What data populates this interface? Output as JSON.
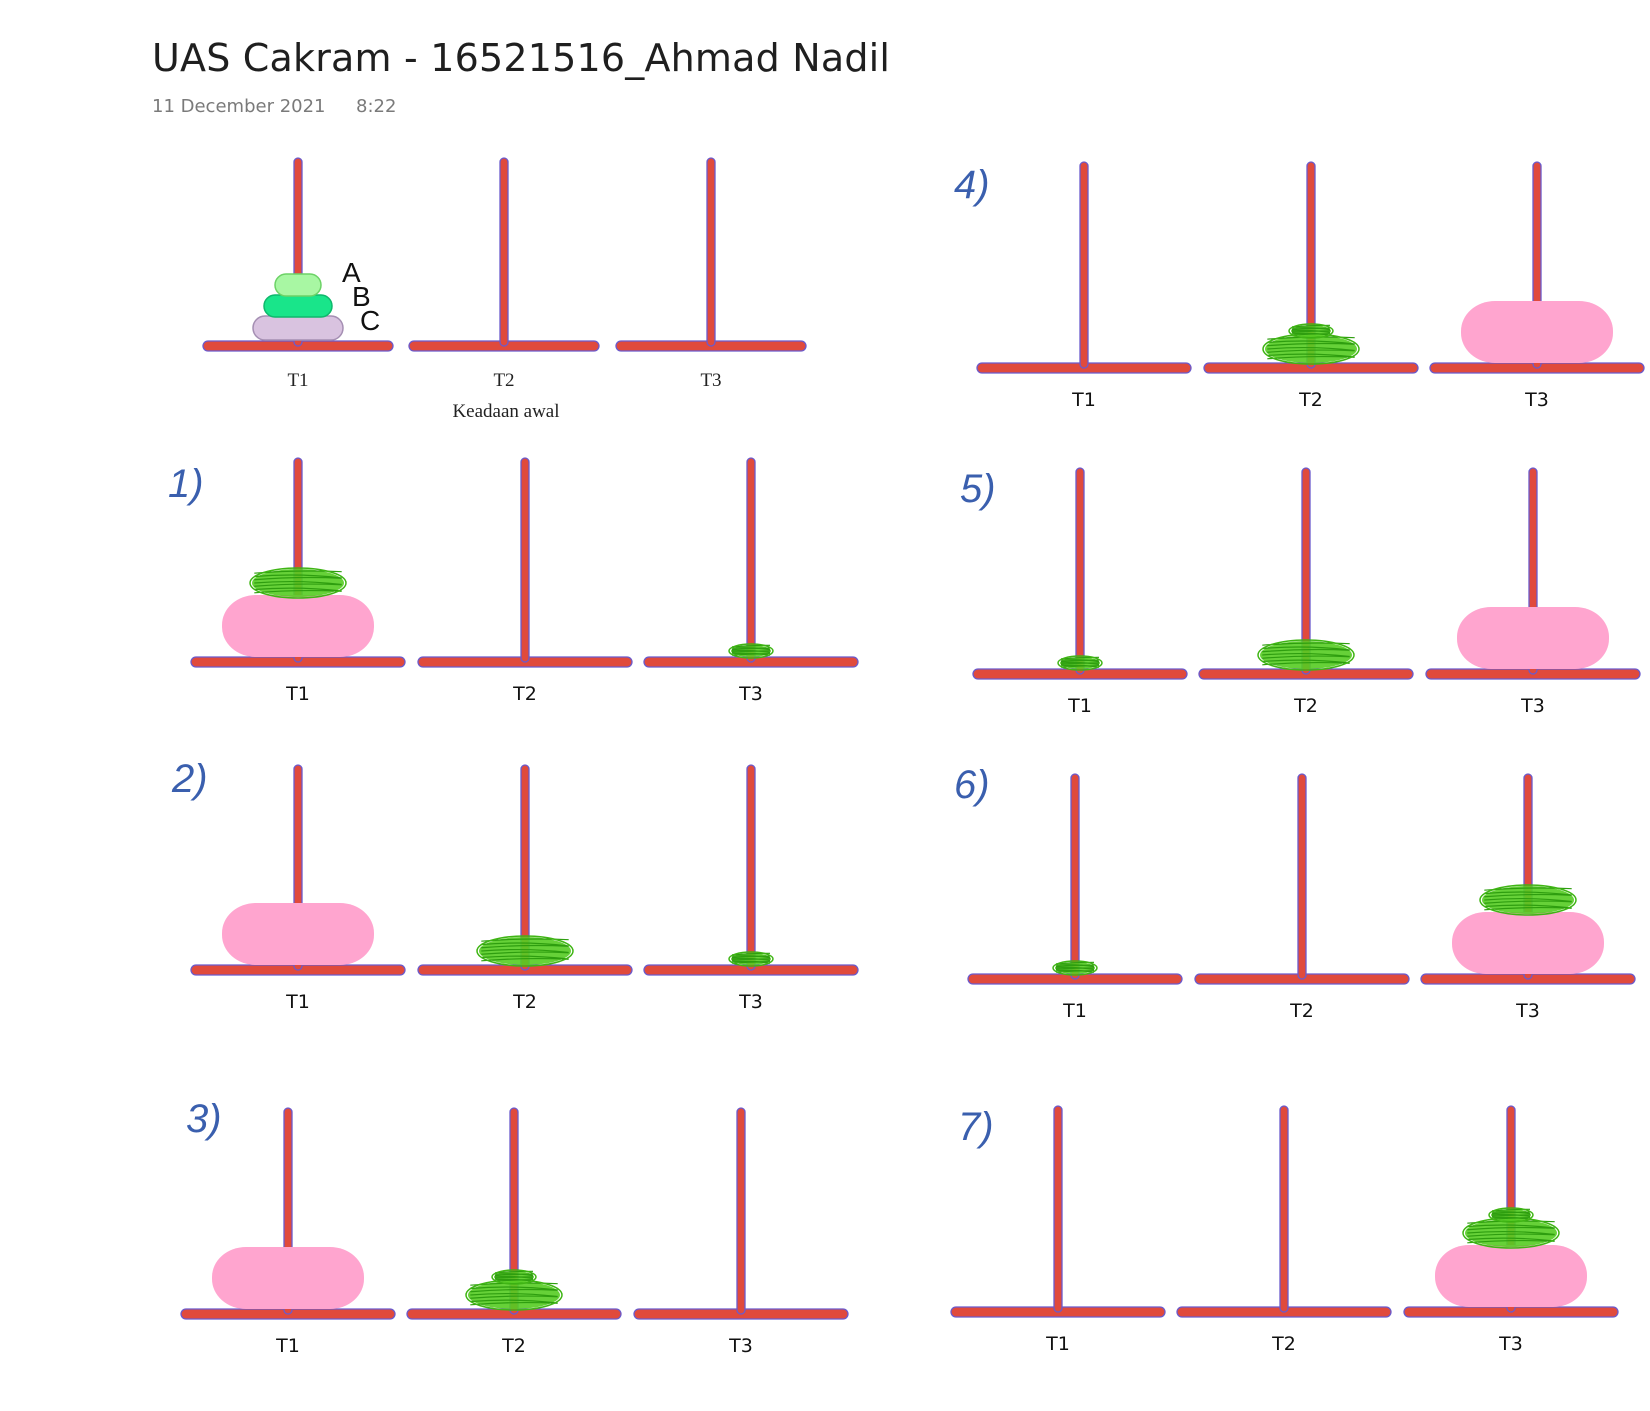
{
  "header": {
    "title": "UAS Cakram - 16521516_Ahmad Nadil",
    "date": "11 December 2021",
    "time": "8:22"
  },
  "colors": {
    "peg": "#e04a3c",
    "peg_outline": "#6a5acd",
    "disk_a_initial": "#a8f7a3",
    "disk_b_initial": "#19e58a",
    "disk_c_initial": "#d9c3e0",
    "disk_large": "#ffa5cf",
    "disk_scribble": "#55cc22",
    "step_number": "#3a5fae"
  },
  "initial": {
    "tower_labels": [
      "T1",
      "T2",
      "T3"
    ],
    "caption": "Keadaan awal",
    "disk_letters": [
      "A",
      "B",
      "C"
    ]
  },
  "steps": [
    {
      "number": "1)",
      "tower_labels": [
        "T1",
        "T2",
        "T3"
      ],
      "towers": [
        [
          "large",
          "medium"
        ],
        [],
        [
          "small"
        ]
      ]
    },
    {
      "number": "2)",
      "tower_labels": [
        "T1",
        "T2",
        "T3"
      ],
      "towers": [
        [
          "large"
        ],
        [
          "medium"
        ],
        [
          "small"
        ]
      ]
    },
    {
      "number": "3)",
      "tower_labels": [
        "T1",
        "T2",
        "T3"
      ],
      "towers": [
        [
          "large"
        ],
        [
          "medium",
          "small"
        ],
        []
      ]
    },
    {
      "number": "4)",
      "tower_labels": [
        "T1",
        "T2",
        "T3"
      ],
      "towers": [
        [],
        [
          "medium",
          "small"
        ],
        [
          "large"
        ]
      ]
    },
    {
      "number": "5)",
      "tower_labels": [
        "T1",
        "T2",
        "T3"
      ],
      "towers": [
        [
          "small"
        ],
        [
          "medium"
        ],
        [
          "large"
        ]
      ]
    },
    {
      "number": "6)",
      "tower_labels": [
        "T1",
        "T2",
        "T3"
      ],
      "towers": [
        [
          "small"
        ],
        [],
        [
          "large",
          "medium"
        ]
      ]
    },
    {
      "number": "7)",
      "tower_labels": [
        "T1",
        "T2",
        "T3"
      ],
      "towers": [
        [],
        [],
        [
          "large",
          "medium",
          "small"
        ]
      ]
    }
  ]
}
